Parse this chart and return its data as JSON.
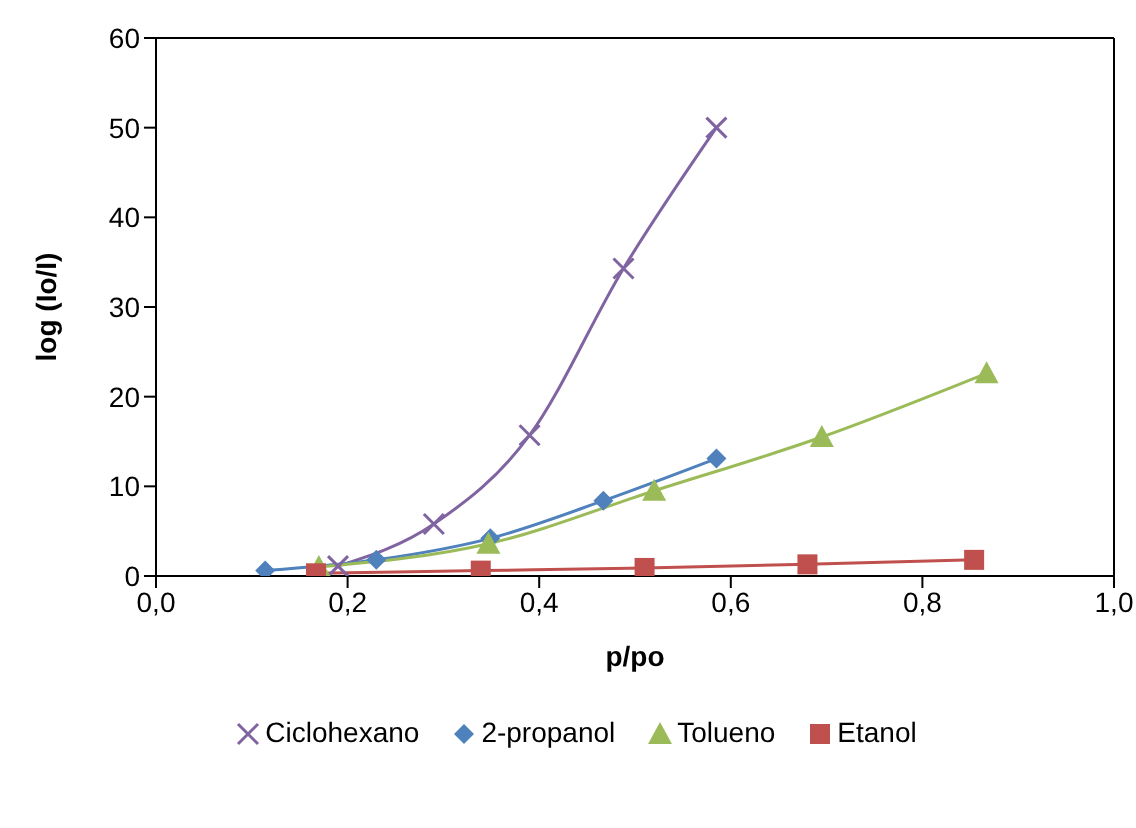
{
  "chart_data": {
    "type": "line",
    "xlabel": "p/po",
    "ylabel": "log (Io/I)",
    "xlim": [
      0,
      1
    ],
    "xticks": [
      {
        "value": 0,
        "label": "0,0"
      },
      {
        "value": 0.2,
        "label": "0,2"
      },
      {
        "value": 0.4,
        "label": "0,4"
      },
      {
        "value": 0.6,
        "label": "0,6"
      },
      {
        "value": 0.8,
        "label": "0,8"
      },
      {
        "value": 1,
        "label": "1,0"
      }
    ],
    "ylim": [
      0,
      60
    ],
    "yticks": [
      0,
      10,
      20,
      30,
      40,
      50,
      60
    ],
    "legend": "bottom",
    "series": [
      {
        "name": "Ciclohexano",
        "color": "#8064a2",
        "marker": "cross",
        "x": [
          0.19,
          0.29,
          0.39,
          0.488,
          0.585
        ],
        "values": [
          1.1,
          5.8,
          15.7,
          34.3,
          50.0
        ]
      },
      {
        "name": "2-propanol",
        "color": "#4f81bd",
        "marker": "diamond",
        "x": [
          0.114,
          0.23,
          0.349,
          0.467,
          0.585
        ],
        "values": [
          0.6,
          1.8,
          4.2,
          8.4,
          13.1
        ]
      },
      {
        "name": "Tolueno",
        "color": "#9bbb59",
        "marker": "triangle",
        "x": [
          0.17,
          0.347,
          0.52,
          0.695,
          0.867
        ],
        "values": [
          1.0,
          3.6,
          9.5,
          15.5,
          22.6
        ]
      },
      {
        "name": "Etanol",
        "color": "#c0504d",
        "marker": "square",
        "x": [
          0.167,
          0.339,
          0.51,
          0.68,
          0.854
        ],
        "values": [
          0.3,
          0.6,
          0.9,
          1.3,
          1.8
        ]
      }
    ]
  }
}
